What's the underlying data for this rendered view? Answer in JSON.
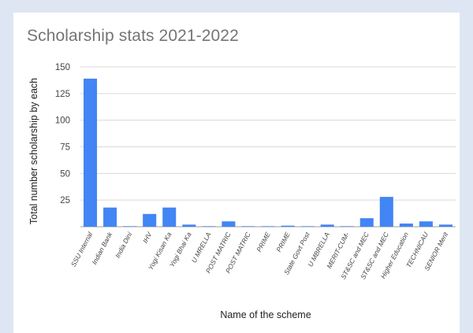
{
  "chart_data": {
    "type": "bar",
    "title": "Scholarship stats 2021-2022",
    "xlabel": "Name of the scheme",
    "ylabel": "Total number scholarship by each",
    "ylim": [
      0,
      150
    ],
    "yticks": [
      25,
      50,
      75,
      100,
      125,
      150
    ],
    "grid": true,
    "bar_color": "#4285f4",
    "categories": [
      "SSU Internal",
      "Indian Bank",
      "India Dini",
      "IHV",
      "Yogi Kisan Ka",
      "Yogi Bhai Ka",
      "U MRELLA",
      "POST MATRIC",
      "POST MATRIC",
      "PRIME",
      "PRIME",
      "State Govt Post",
      "U MBRELLA",
      "MERIT-CUM-",
      "ST&SC and MEC",
      "ST&SC and MEC",
      "Higher Education",
      "TECHNICAU",
      "SENIOR Merit"
    ],
    "values": [
      139,
      18,
      0.5,
      12,
      18,
      2,
      0.5,
      5,
      0.5,
      0.5,
      1,
      0.5,
      2,
      0.5,
      8,
      28,
      3,
      5,
      2
    ]
  }
}
